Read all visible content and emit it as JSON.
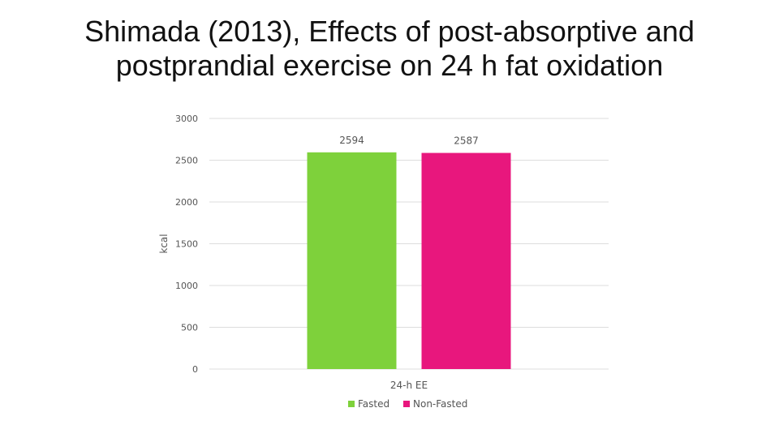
{
  "slide": {
    "title_line1": "Shimada (2013), Effects of post-absorptive and",
    "title_line2": "postprandial exercise on 24 h fat oxidation"
  },
  "chart_data": {
    "type": "bar",
    "title": "",
    "categories": [
      "24-h EE"
    ],
    "series": [
      {
        "name": "Fasted",
        "values": [
          2594
        ],
        "color": "#7ed13b"
      },
      {
        "name": "Non-Fasted",
        "values": [
          2587
        ],
        "color": "#e8177d"
      }
    ],
    "xlabel": "24-h EE",
    "ylabel": "kcal",
    "ylim": [
      0,
      3000
    ],
    "yticks": [
      0,
      500,
      1000,
      1500,
      2000,
      2500,
      3000
    ],
    "grid": true,
    "legend": "bottom",
    "gridColor": "#dddddd"
  }
}
